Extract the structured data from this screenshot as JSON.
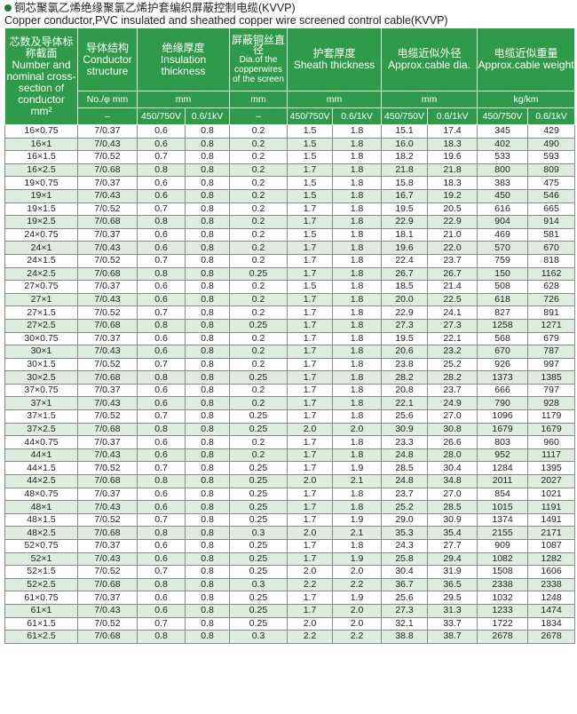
{
  "title": {
    "cn": "铜芯聚氯乙烯绝缘聚氯乙烯护套编织屏蔽控制电缆(KVVP)",
    "en": "Copper conductor,PVC insulated and sheathed copper wire screened control cable(KVVP)"
  },
  "headers": {
    "c1": {
      "cn": "芯数及导体标称截面",
      "en": "Number and nominal cross-section of conductor",
      "unit": "mm²"
    },
    "c2": {
      "cn": "导体结构",
      "en": "Conductor structure",
      "unit": "No./φ mm",
      "sub": "–"
    },
    "c3": {
      "cn": "绝缘厚度",
      "en": "Insulation thickness",
      "unit": "mm"
    },
    "c4": {
      "cn": "屏蔽铜丝直径",
      "en": "Dia.of the copperwires of the screen",
      "unit": "mm",
      "sub": "–"
    },
    "c5": {
      "cn": "护套厚度",
      "en": "Sheath thickness",
      "unit": "mm"
    },
    "c6": {
      "cn": "电缆近似外径",
      "en": "Approx.cable dia.",
      "unit": "mm"
    },
    "c7": {
      "cn": "电缆近似重量",
      "en": "Approx.cable weight",
      "unit": "kg/km"
    },
    "v1": "450/750V",
    "v2": "0.6/1kV"
  },
  "rows": [
    [
      "16×0.75",
      "7/0.37",
      "0.6",
      "0.8",
      "0.2",
      "1.5",
      "1.8",
      "15.1",
      "17.4",
      "345",
      "429"
    ],
    [
      "16×1",
      "7/0.43",
      "0.6",
      "0.8",
      "0.2",
      "1.5",
      "1.8",
      "16.0",
      "18.3",
      "402",
      "490"
    ],
    [
      "16×1.5",
      "7/0.52",
      "0.7",
      "0.8",
      "0.2",
      "1.5",
      "1.8",
      "18.2",
      "19.6",
      "533",
      "593"
    ],
    [
      "16×2.5",
      "7/0.68",
      "0.8",
      "0.8",
      "0.2",
      "1.7",
      "1.8",
      "21.8",
      "21.8",
      "800",
      "809"
    ],
    [
      "19×0.75",
      "7/0.37",
      "0.6",
      "0.8",
      "0.2",
      "1.5",
      "1.8",
      "15.8",
      "18.3",
      "383",
      "475"
    ],
    [
      "19×1",
      "7/0.43",
      "0.6",
      "0.8",
      "0.2",
      "1.5",
      "1.8",
      "16.7",
      "19.2",
      "450",
      "546"
    ],
    [
      "19×1.5",
      "7/0.52",
      "0.7",
      "0.8",
      "0.2",
      "1.7",
      "1.8",
      "19.5",
      "20.5",
      "616",
      "665"
    ],
    [
      "19×2.5",
      "7/0.68",
      "0.8",
      "0.8",
      "0.2",
      "1.7",
      "1.8",
      "22.9",
      "22.9",
      "904",
      "914"
    ],
    [
      "24×0.75",
      "7/0.37",
      "0.6",
      "0.8",
      "0.2",
      "1.5",
      "1.8",
      "18.1",
      "21.0",
      "469",
      "581"
    ],
    [
      "24×1",
      "7/0.43",
      "0.6",
      "0.8",
      "0.2",
      "1.7",
      "1.8",
      "19.6",
      "22.0",
      "570",
      "670"
    ],
    [
      "24×1.5",
      "7/0.52",
      "0.7",
      "0.8",
      "0.2",
      "1.7",
      "1.8",
      "22.4",
      "23.7",
      "759",
      "818"
    ],
    [
      "24×2.5",
      "7/0.68",
      "0.8",
      "0.8",
      "0.25",
      "1.7",
      "1.8",
      "26.7",
      "26.7",
      "150",
      "1162"
    ],
    [
      "27×0.75",
      "7/0.37",
      "0.6",
      "0.8",
      "0.2",
      "1.5",
      "1.8",
      "18.5",
      "21.4",
      "508",
      "628"
    ],
    [
      "27×1",
      "7/0.43",
      "0.6",
      "0.8",
      "0.2",
      "1.7",
      "1.8",
      "20.0",
      "22.5",
      "618",
      "726"
    ],
    [
      "27×1.5",
      "7/0.52",
      "0.7",
      "0.8",
      "0.2",
      "1.7",
      "1.8",
      "22.9",
      "24.1",
      "827",
      "891"
    ],
    [
      "27×2.5",
      "7/0.68",
      "0.8",
      "0.8",
      "0.25",
      "1.7",
      "1.8",
      "27.3",
      "27.3",
      "1258",
      "1271"
    ],
    [
      "30×0.75",
      "7/0.37",
      "0.6",
      "0.8",
      "0.2",
      "1.7",
      "1.8",
      "19.5",
      "22.1",
      "568",
      "679"
    ],
    [
      "30×1",
      "7/0.43",
      "0.6",
      "0.8",
      "0.2",
      "1.7",
      "1.8",
      "20.6",
      "23.2",
      "670",
      "787"
    ],
    [
      "30×1.5",
      "7/0.52",
      "0.7",
      "0.8",
      "0.2",
      "1.7",
      "1.8",
      "23.8",
      "25.2",
      "926",
      "997"
    ],
    [
      "30×2.5",
      "7/0.68",
      "0.8",
      "0.8",
      "0.25",
      "1.7",
      "1.8",
      "28.2",
      "28.2",
      "1373",
      "1385"
    ],
    [
      "37×0.75",
      "7/0.37",
      "0.6",
      "0.8",
      "0.2",
      "1.7",
      "1.8",
      "20.8",
      "23.7",
      "666",
      "797"
    ],
    [
      "37×1",
      "7/0.43",
      "0.6",
      "0.8",
      "0.2",
      "1.7",
      "1.8",
      "22.1",
      "24.9",
      "790",
      "928"
    ],
    [
      "37×1.5",
      "7/0.52",
      "0.7",
      "0.8",
      "0.25",
      "1.7",
      "1.8",
      "25.6",
      "27.0",
      "1096",
      "1179"
    ],
    [
      "37×2.5",
      "7/0.68",
      "0.8",
      "0.8",
      "0.25",
      "2.0",
      "2.0",
      "30.9",
      "30.8",
      "1679",
      "1679"
    ],
    [
      "44×0.75",
      "7/0.37",
      "0.6",
      "0.8",
      "0.2",
      "1.7",
      "1.8",
      "23.3",
      "26.6",
      "803",
      "960"
    ],
    [
      "44×1",
      "7/0.43",
      "0.6",
      "0.8",
      "0.2",
      "1.7",
      "1.8",
      "24.8",
      "28.0",
      "952",
      "1117"
    ],
    [
      "44×1.5",
      "7/0.52",
      "0.7",
      "0.8",
      "0.25",
      "1.7",
      "1.9",
      "28.5",
      "30.4",
      "1284",
      "1395"
    ],
    [
      "44×2.5",
      "7/0.68",
      "0.8",
      "0.8",
      "0.25",
      "2.0",
      "2.1",
      "24.8",
      "34.8",
      "2011",
      "2027"
    ],
    [
      "48×0.75",
      "7/0.37",
      "0.6",
      "0.8",
      "0.25",
      "1.7",
      "1.8",
      "23.7",
      "27.0",
      "854",
      "1021"
    ],
    [
      "48×1",
      "7/0.43",
      "0.6",
      "0.8",
      "0.25",
      "1.7",
      "1.8",
      "25.2",
      "28.5",
      "1015",
      "1191"
    ],
    [
      "48×1.5",
      "7/0.52",
      "0.7",
      "0.8",
      "0.25",
      "1.7",
      "1.9",
      "29.0",
      "30.9",
      "1374",
      "1491"
    ],
    [
      "48×2.5",
      "7/0.68",
      "0.8",
      "0.8",
      "0.3",
      "2.0",
      "2.1",
      "35.3",
      "35.4",
      "2155",
      "2171"
    ],
    [
      "52×0.75",
      "7/0.37",
      "0.6",
      "0.8",
      "0.25",
      "1.7",
      "1.8",
      "24.3",
      "27.7",
      "909",
      "1087"
    ],
    [
      "52×1",
      "7/0.43",
      "0.6",
      "0.8",
      "0.25",
      "1.7",
      "1.9",
      "25.8",
      "29.4",
      "1082",
      "1282"
    ],
    [
      "52×1.5",
      "7/0.52",
      "0.7",
      "0.8",
      "0.25",
      "2.0",
      "2.0",
      "30.4",
      "31.9",
      "1508",
      "1606"
    ],
    [
      "52×2.5",
      "7/0.68",
      "0.8",
      "0.8",
      "0.3",
      "2.2",
      "2.2",
      "36.7",
      "36.5",
      "2338",
      "2338"
    ],
    [
      "61×0.75",
      "7/0.37",
      "0.6",
      "0.8",
      "0.25",
      "1.7",
      "1.9",
      "25.6",
      "29.5",
      "1032",
      "1248"
    ],
    [
      "61×1",
      "7/0.43",
      "0.6",
      "0.8",
      "0.25",
      "1.7",
      "2.0",
      "27.3",
      "31.3",
      "1233",
      "1474"
    ],
    [
      "61×1.5",
      "7/0.52",
      "0.7",
      "0.8",
      "0.25",
      "2.0",
      "2.0",
      "32.1",
      "33.7",
      "1722",
      "1834"
    ],
    [
      "61×2.5",
      "7/0.68",
      "0.8",
      "0.8",
      "0.3",
      "2.2",
      "2.2",
      "38.8",
      "38.7",
      "2678",
      "2678"
    ]
  ],
  "colors": {
    "header_bg": "#2f9a49",
    "alt_row": "#dfece0",
    "bullet": "#1f7a3a"
  }
}
